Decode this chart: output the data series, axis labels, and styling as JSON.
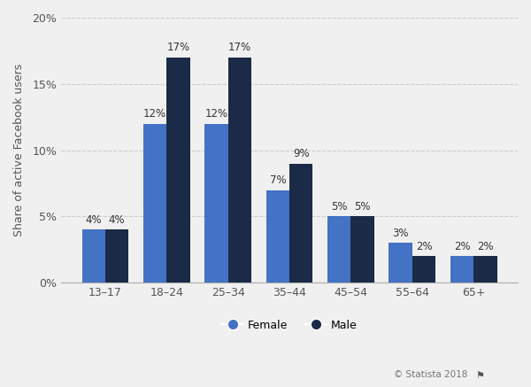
{
  "categories": [
    "13–17",
    "18–24",
    "25–34",
    "35–44",
    "45–54",
    "55–64",
    "65+"
  ],
  "female_values": [
    4,
    12,
    12,
    7,
    5,
    3,
    2
  ],
  "male_values": [
    4,
    17,
    17,
    9,
    5,
    2,
    2
  ],
  "female_color": "#4472C4",
  "male_color": "#1B2A47",
  "ylabel": "Share of active Facebook users",
  "ylim": [
    0,
    20
  ],
  "yticks": [
    0,
    5,
    10,
    15,
    20
  ],
  "ytick_labels": [
    "0%",
    "5%",
    "10%",
    "15%",
    "20%"
  ],
  "background_color": "#f0f0f0",
  "grid_color": "#cccccc",
  "bar_width": 0.38,
  "legend_labels": [
    "Female",
    "Male"
  ],
  "copyright": "© Statista 2018",
  "label_fontsize": 8.5,
  "axis_fontsize": 9,
  "legend_fontsize": 9
}
